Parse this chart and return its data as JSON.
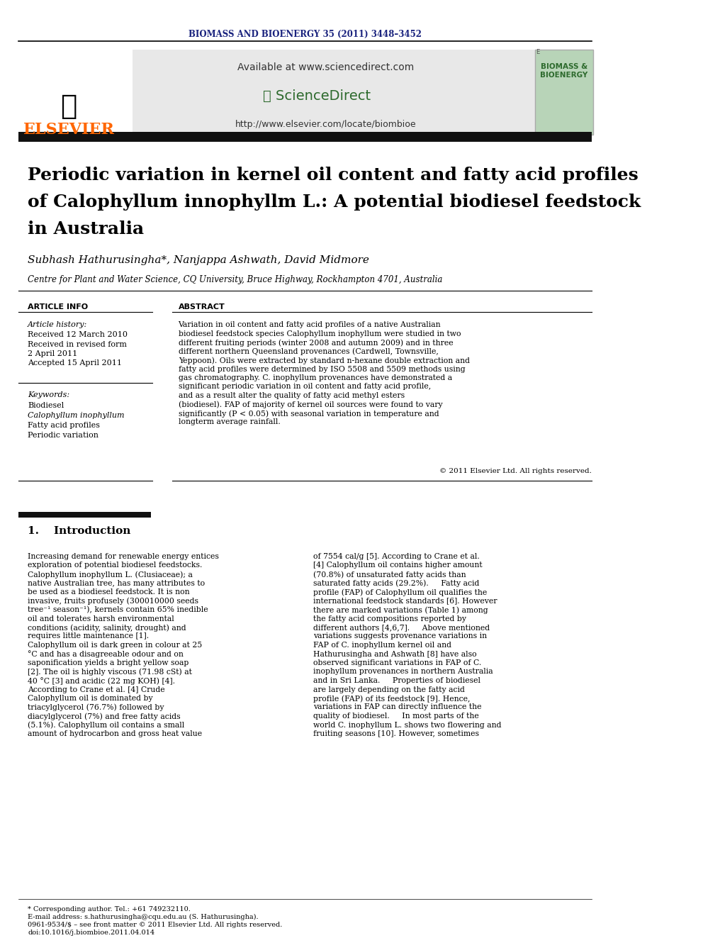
{
  "journal_header": "BIOMASS AND BIOENERGY 35 (2011) 3448–3452",
  "journal_header_color": "#1a237e",
  "available_text": "Available at www.sciencedirect.com",
  "sciencedirect_text": "ScienceDirect",
  "url_text": "http://www.elsevier.com/locate/biombioe",
  "elsevier_text": "ELSEVIER",
  "elsevier_color": "#FF6600",
  "journal_name": "BIOMASS &\nBIOENERGY",
  "journal_name_color": "#2d6a2d",
  "paper_title": "Periodic variation in kernel oil content and fatty acid profiles\nof Calophyllum innophyllm L.: A potential biodiesel feedstock\nin Australia",
  "authors": "Subhash Hathurusingha*, Nanjappa Ashwath, David Midmore",
  "affiliation": "Centre for Plant and Water Science, CQ University, Bruce Highway, Rockhampton 4701, Australia",
  "article_info_header": "ARTICLE INFO",
  "abstract_header": "ABSTRACT",
  "article_history_label": "Article history:",
  "received_1": "Received 12 March 2010",
  "received_revised": "Received in revised form",
  "revised_date": "2 April 2011",
  "accepted": "Accepted 15 April 2011",
  "keywords_label": "Keywords:",
  "keywords": [
    "Biodiesel",
    "Calophyllum inophyllum",
    "Fatty acid profiles",
    "Periodic variation"
  ],
  "abstract_text": "Variation in oil content and fatty acid profiles of a native Australian biodiesel feedstock species Calophyllum inophyllum were studied in two different fruiting periods (winter 2008 and autumn 2009) and in three different northern Queensland provenances (Cardwell, Townsville, Yeppoon). Oils were extracted by standard n-hexane double extraction and fatty acid profiles were determined by ISO 5508 and 5509 methods using gas chromatography. C. inophyllum provenances have demonstrated a significant periodic variation in oil content and fatty acid profile, and as a result alter the quality of fatty acid methyl esters (biodiesel). FAP of majority of kernel oil sources were found to vary significantly (P < 0.05) with seasonal variation in temperature and longterm average rainfall.",
  "copyright": "© 2011 Elsevier Ltd. All rights reserved.",
  "section1_num": "1.",
  "section1_title": "Introduction",
  "intro_col1": "Increasing demand for renewable energy entices exploration of potential biodiesel feedstocks. Calophyllum inophyllum L. (Clusiaceae); a native Australian tree, has many attributes to be used as a biodiesel feedstock. It is non invasive, fruits profusely (300010000 seeds tree⁻¹ season⁻¹), kernels contain 65% inedible oil and tolerates harsh environmental conditions (acidity, salinity, drought) and requires little maintenance [1].\n    Calophyllum oil is dark green in colour at 25 °C and has a disagreeable odour and on saponification yields a bright yellow soap [2]. The oil is highly viscous (71.98 cSt) at 40 °C [3] and acidic (22 mg KOH) [4].\n    According to Crane et al. [4] Crude Calophyllum oil is dominated by triacylglycerol (76.7%) followed by diacylglycerol (7%) and free fatty acids (5.1%). Calophyllum oil contains a small amount of hydrocarbon and gross heat value",
  "intro_col2": "of 7554 cal/g [5]. According to Crane et al. [4] Calophyllum oil contains higher amount (70.8%) of unsaturated fatty acids than saturated fatty acids (29.2%).\n    Fatty acid profile (FAP) of Calophyllum oil qualifies the international feedstock standards [6]. However there are marked variations (Table 1) among the fatty acid compositions reported by different authors [4,6,7].\n    Above mentioned variations suggests provenance variations in FAP of C. inophyllum kernel oil and Hathurusingha and Ashwath [8] have also observed significant variations in FAP of C. inophyllum provenances in northern Australia and in Sri Lanka.\n    Properties of biodiesel are largely depending on the fatty acid profile (FAP) of its feedstock [9]. Hence, variations in FAP can directly influence the quality of biodiesel.\n    In most parts of the world C. inophyllum L. shows two flowering and fruiting seasons [10]. However, sometimes",
  "footnote_star": "* Corresponding author. Tel.: +61 749232110.",
  "footnote_email": "E-mail address: s.hathurusingha@cqu.edu.au (S. Hathurusingha).",
  "footnote_issn": "0961-9534/$ – see front matter © 2011 Elsevier Ltd. All rights reserved.",
  "footnote_doi": "doi:10.1016/j.biombioe.2011.04.014",
  "background_color": "#ffffff",
  "header_bg_color": "#e8e8e8",
  "black_bar_color": "#111111",
  "text_color": "#000000"
}
